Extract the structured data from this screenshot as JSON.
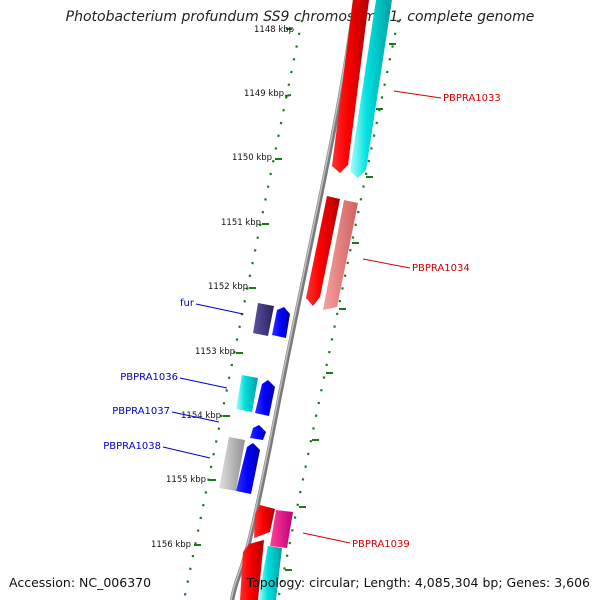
{
  "title": "Photobacterium profundum SS9 chromosome 1, complete genome",
  "accession": "Accession: NC_006370",
  "topology": "Topology: circular; Length: 4,085,304 bp; Genes: 3,606",
  "ticks": [
    "1148 kbp",
    "1149 kbp",
    "1150 kbp",
    "1151 kbp",
    "1152 kbp",
    "1153 kbp",
    "1154 kbp",
    "1155 kbp",
    "1156 kbp"
  ],
  "genes_right": [
    {
      "label": "PBPRA1033",
      "color": "#d40000"
    },
    {
      "label": "PBPRA1034",
      "color": "#d40000"
    },
    {
      "label": "PBPRA1039",
      "color": "#d40000"
    }
  ],
  "genes_left": [
    {
      "label": "fur",
      "color": "#0000cc"
    },
    {
      "label": "PBPRA1036",
      "color": "#0000cc"
    },
    {
      "label": "PBPRA1037",
      "color": "#0000cc"
    },
    {
      "label": "PBPRA1038",
      "color": "#0000cc"
    }
  ],
  "colors": {
    "red": "#ff0000",
    "pink": "#f08080",
    "cyan": "#00d8d8",
    "blue": "#0000ff",
    "navy": "#3b3480",
    "magenta": "#ff1493",
    "gray": "#a9a9a9",
    "tick": "#1a7a1a"
  }
}
